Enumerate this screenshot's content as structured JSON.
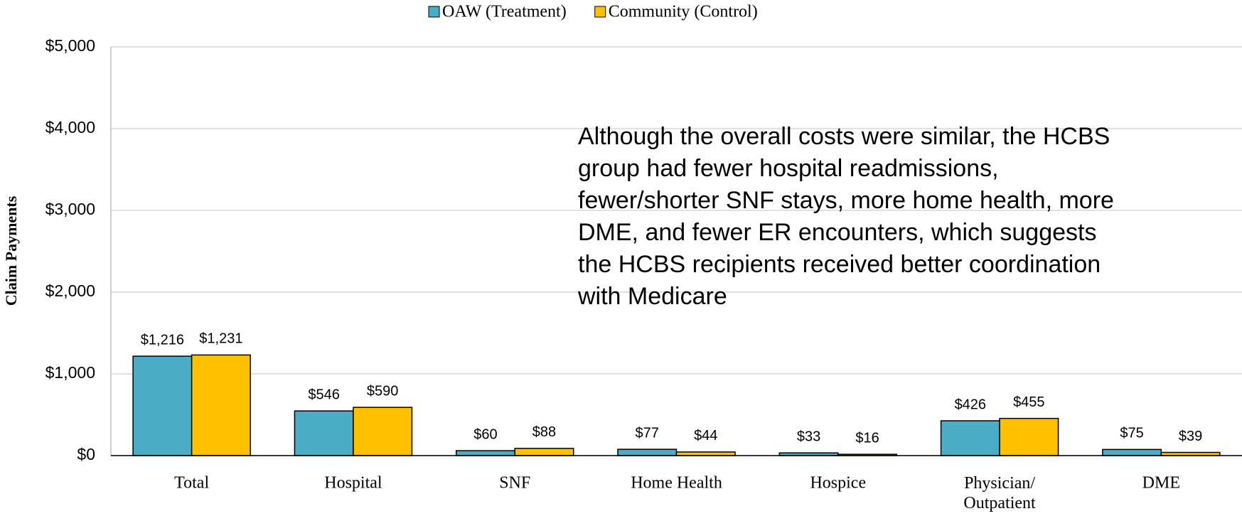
{
  "chart_data": {
    "type": "bar",
    "categories": [
      "Total",
      "Hospital",
      "SNF",
      "Home Health",
      "Hospice",
      "Physician/ Outpatient",
      "DME"
    ],
    "series": [
      {
        "name": "OAW (Treatment)",
        "color": "#4bacc6",
        "values": [
          1216,
          546,
          60,
          77,
          33,
          426,
          75
        ],
        "value_labels": [
          "$1,216",
          "$546",
          "$60",
          "$77",
          "$33",
          "$426",
          "$75"
        ]
      },
      {
        "name": "Community (Control)",
        "color": "#ffc000",
        "values": [
          1231,
          590,
          88,
          44,
          16,
          455,
          39
        ],
        "value_labels": [
          "$1,231",
          "$590",
          "$88",
          "$44",
          "$16",
          "$455",
          "$39"
        ]
      }
    ],
    "ylabel": "Claim Payments",
    "ylim": [
      0,
      5000
    ],
    "yticks": [
      {
        "value": 0,
        "label": "$0"
      },
      {
        "value": 1000,
        "label": "$1,000"
      },
      {
        "value": 2000,
        "label": "$2,000"
      },
      {
        "value": 3000,
        "label": "$3,000"
      },
      {
        "value": 4000,
        "label": "$4,000"
      },
      {
        "value": 5000,
        "label": "$5,000"
      }
    ],
    "grid": true,
    "legend": "top",
    "annotation": "Although the overall costs were similar, the HCBS group had fewer hospital readmissions, fewer/shorter SNF stays, more home health, more DME, and fewer ER encounters, which suggests the HCBS recipients received better coordination with Medicare"
  }
}
